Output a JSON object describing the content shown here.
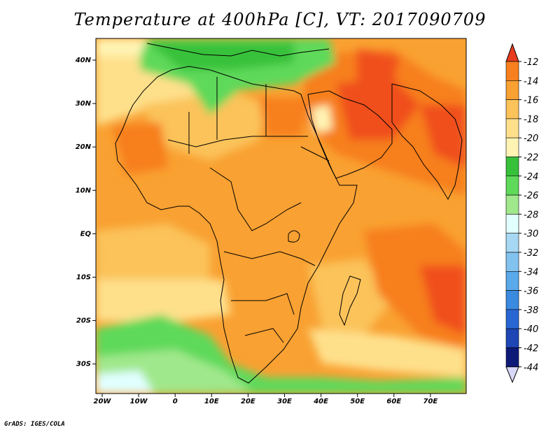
{
  "title": "Temperature at 400hPa [C], VT: 2017090709",
  "credit": "GrADS: IGES/COLA",
  "map": {
    "lon_labels": [
      "20W",
      "10W",
      "0",
      "10E",
      "20E",
      "30E",
      "40E",
      "50E",
      "60E",
      "70E"
    ],
    "lat_labels": [
      "40N",
      "30N",
      "20N",
      "10N",
      "EQ",
      "10S",
      "20S",
      "30S"
    ]
  },
  "colorbar": {
    "levels": [
      "-12",
      "-14",
      "-16",
      "-18",
      "-20",
      "-22",
      "-24",
      "-26",
      "-28",
      "-30",
      "-32",
      "-34",
      "-36",
      "-38",
      "-40",
      "-42",
      "-44"
    ],
    "colors": [
      "#f0501e",
      "#f77f1e",
      "#f9a132",
      "#fbc35a",
      "#fee08b",
      "#fff4b4",
      "#37c13b",
      "#5fd95a",
      "#a0e88c",
      "#e1ffff",
      "#a6d8f4",
      "#82c2ee",
      "#5aa9ea",
      "#3a8ae0",
      "#2866d4",
      "#1e46b4",
      "#0e1a78"
    ],
    "top_arrow_color": "#e73c1e",
    "bottom_arrow_color": "#d8d8f8"
  }
}
